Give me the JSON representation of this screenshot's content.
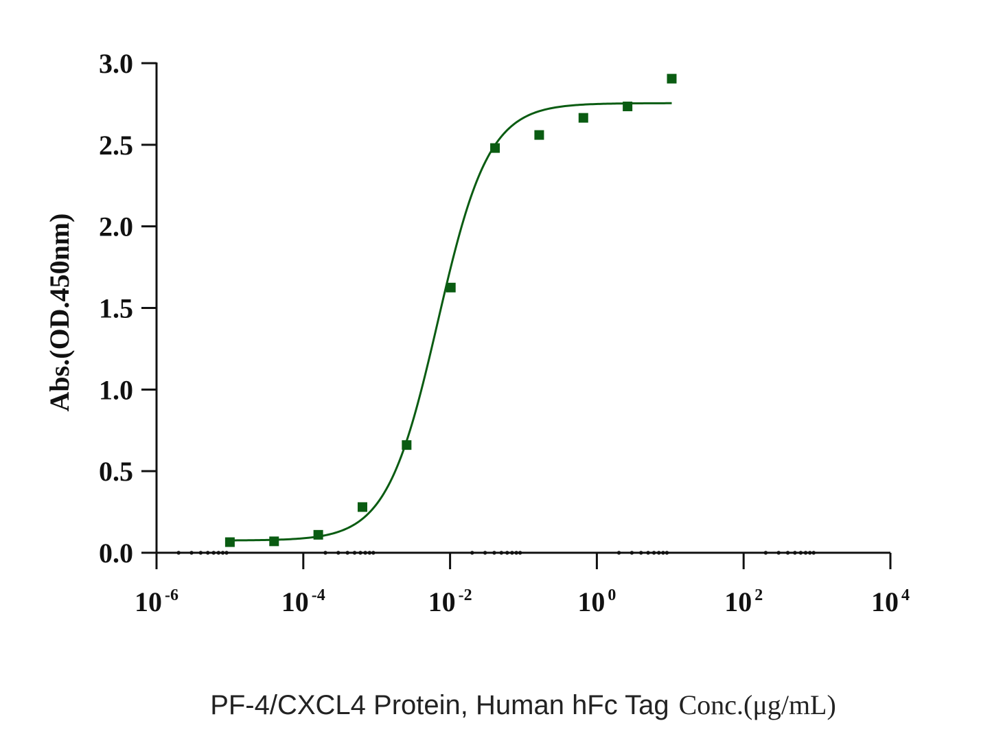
{
  "chart_data": {
    "type": "scatter",
    "title": "",
    "ylabel": "Abs.(OD.450nm)",
    "xlabel": {
      "main": "PF-4/CXCL4 Protein, Human hFc Tag",
      "unit": "Conc.(μg/mL)"
    },
    "x_scale": "log10",
    "xlim": [
      1e-06,
      10000
    ],
    "ylim": [
      0,
      3.0
    ],
    "x_ticks": [
      {
        "base": "10",
        "exp": "-6",
        "value": 1e-06
      },
      {
        "base": "10",
        "exp": "-4",
        "value": 0.0001
      },
      {
        "base": "10",
        "exp": "-2",
        "value": 0.01
      },
      {
        "base": "10",
        "exp": "0",
        "value": 1
      },
      {
        "base": "10",
        "exp": "2",
        "value": 100
      },
      {
        "base": "10",
        "exp": "4",
        "value": 10000
      }
    ],
    "y_ticks": [
      "0.0",
      "0.5",
      "1.0",
      "1.5",
      "2.0",
      "2.5",
      "3.0"
    ],
    "grid": false,
    "color": "#0a5c12",
    "series": [
      {
        "x": [
          1e-05,
          4e-05,
          0.00016,
          0.00064,
          0.00256,
          0.01024,
          0.04096,
          0.16384,
          0.65536,
          2.62144,
          10.48576
        ],
        "y": [
          0.065,
          0.07,
          0.11,
          0.28,
          0.66,
          1.625,
          2.48,
          2.56,
          2.665,
          2.735,
          2.905
        ]
      }
    ],
    "fit_curve": {
      "model": "4PL",
      "bottom": 0.075,
      "top": 2.755,
      "ec50": 0.0068,
      "hill": 1.25,
      "x_range": [
        1e-05,
        10.48576
      ]
    }
  }
}
